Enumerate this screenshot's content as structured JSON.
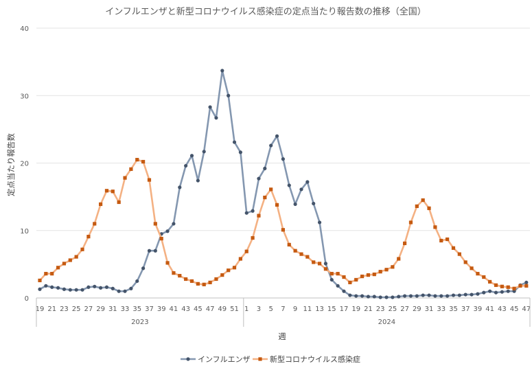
{
  "chart_data": {
    "type": "line",
    "title": "インフルエンザと新型コロナウイルス感染症の定点当たり報告数の推移（全国）",
    "xlabel": "週",
    "ylabel": "定点当たり報告数",
    "ylim": [
      0,
      40
    ],
    "yticks": [
      0,
      10,
      20,
      30,
      40
    ],
    "gridlines": true,
    "legend_position": "bottom",
    "year_labels": [
      {
        "label": "2023",
        "start_index": 0,
        "end_index": 33
      },
      {
        "label": "2024",
        "start_index": 34,
        "end_index": 80
      }
    ],
    "categories": [
      "19",
      "20",
      "21",
      "22",
      "23",
      "24",
      "25",
      "26",
      "27",
      "28",
      "29",
      "30",
      "31",
      "32",
      "33",
      "34",
      "35",
      "36",
      "37",
      "38",
      "39",
      "40",
      "41",
      "42",
      "43",
      "44",
      "45",
      "46",
      "47",
      "48",
      "49",
      "50",
      "51",
      "52",
      "1",
      "2",
      "3",
      "4",
      "5",
      "6",
      "7",
      "8",
      "9",
      "10",
      "11",
      "12",
      "13",
      "14",
      "15",
      "16",
      "17",
      "18",
      "19",
      "20",
      "21",
      "22",
      "23",
      "24",
      "25",
      "26",
      "27",
      "28",
      "29",
      "30",
      "31",
      "32",
      "33",
      "34",
      "35",
      "36",
      "37",
      "38",
      "39",
      "40",
      "41",
      "42",
      "43",
      "44",
      "45",
      "46",
      "47"
    ],
    "tick_labels": [
      "19",
      "21",
      "23",
      "25",
      "27",
      "29",
      "31",
      "33",
      "35",
      "37",
      "39",
      "41",
      "43",
      "45",
      "47",
      "49",
      "51",
      "1",
      "3",
      "5",
      "7",
      "9",
      "11",
      "13",
      "15",
      "17",
      "19",
      "21",
      "23",
      "25",
      "27",
      "29",
      "31",
      "33",
      "35",
      "37",
      "39",
      "41",
      "43",
      "45",
      "47"
    ],
    "series": [
      {
        "name": "インフルエンザ",
        "color": "#8497b0",
        "marker": "circle",
        "marker_color": "#44546a",
        "values": [
          1.3,
          1.8,
          1.6,
          1.5,
          1.3,
          1.2,
          1.2,
          1.2,
          1.6,
          1.7,
          1.5,
          1.6,
          1.4,
          1.0,
          1.0,
          1.4,
          2.5,
          4.4,
          7.0,
          7.0,
          9.5,
          9.9,
          11.0,
          16.4,
          19.6,
          21.1,
          17.4,
          21.7,
          28.3,
          26.7,
          33.7,
          30.0,
          23.1,
          21.6,
          12.6,
          12.9,
          17.7,
          19.2,
          22.6,
          24.0,
          20.6,
          16.7,
          13.9,
          16.1,
          17.2,
          14.0,
          11.2,
          5.1,
          2.7,
          1.8,
          1.0,
          0.4,
          0.3,
          0.3,
          0.2,
          0.2,
          0.1,
          0.1,
          0.1,
          0.2,
          0.3,
          0.3,
          0.3,
          0.4,
          0.4,
          0.3,
          0.3,
          0.3,
          0.4,
          0.4,
          0.5,
          0.5,
          0.6,
          0.8,
          1.0,
          0.8,
          0.9,
          1.0,
          1.0,
          1.9,
          2.3
        ]
      },
      {
        "name": "新型コロナウイルス感染症",
        "color": "#f4b183",
        "marker": "square",
        "marker_color": "#c55a11",
        "values": [
          2.6,
          3.6,
          3.6,
          4.5,
          5.1,
          5.6,
          6.1,
          7.2,
          9.1,
          11.0,
          13.9,
          15.9,
          15.8,
          14.2,
          17.8,
          19.1,
          20.5,
          20.2,
          17.5,
          11.0,
          8.8,
          5.2,
          3.7,
          3.3,
          2.8,
          2.5,
          2.1,
          2.0,
          2.3,
          2.8,
          3.4,
          4.1,
          4.5,
          5.8,
          6.9,
          8.9,
          12.2,
          14.9,
          16.1,
          13.8,
          10.1,
          7.9,
          7.0,
          6.5,
          6.1,
          5.3,
          5.1,
          4.3,
          3.6,
          3.6,
          3.1,
          2.3,
          2.7,
          3.2,
          3.4,
          3.5,
          3.9,
          4.2,
          4.6,
          5.8,
          8.1,
          11.2,
          13.6,
          14.5,
          13.3,
          10.5,
          8.5,
          8.7,
          7.4,
          6.5,
          5.3,
          4.4,
          3.6,
          3.1,
          2.4,
          1.9,
          1.7,
          1.6,
          1.4,
          1.8,
          1.8
        ]
      }
    ]
  }
}
